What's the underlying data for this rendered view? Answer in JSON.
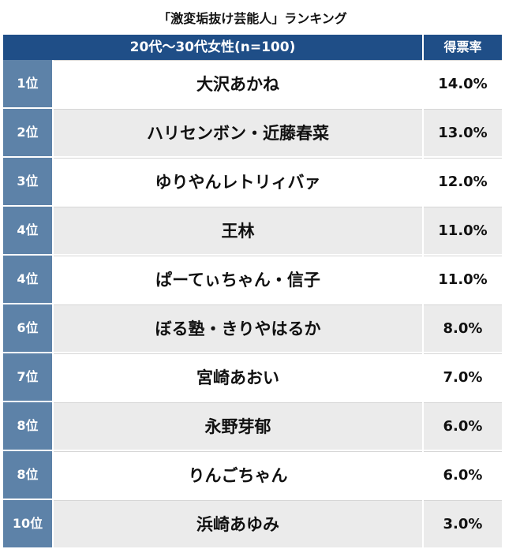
{
  "chart_data": {
    "type": "table",
    "title": "「激変垢抜け芸能人」ランキング",
    "header": {
      "group": "20代〜30代女性(n=100)",
      "rate": "得票率"
    },
    "rows": [
      {
        "rank": "1位",
        "name": "大沢あかね",
        "rate": "14.0%",
        "value": 14.0
      },
      {
        "rank": "2位",
        "name": "ハリセンボン・近藤春菜",
        "rate": "13.0%",
        "value": 13.0
      },
      {
        "rank": "3位",
        "name": "ゆりやんレトリィバァ",
        "rate": "12.0%",
        "value": 12.0
      },
      {
        "rank": "4位",
        "name": "王林",
        "rate": "11.0%",
        "value": 11.0
      },
      {
        "rank": "4位",
        "name": "ぱーてぃちゃん・信子",
        "rate": "11.0%",
        "value": 11.0
      },
      {
        "rank": "6位",
        "name": "ぼる塾・きりやはるか",
        "rate": "8.0%",
        "value": 8.0
      },
      {
        "rank": "7位",
        "name": "宮崎あおい",
        "rate": "7.0%",
        "value": 7.0
      },
      {
        "rank": "8位",
        "name": "永野芽郁",
        "rate": "6.0%",
        "value": 6.0
      },
      {
        "rank": "8位",
        "name": "りんごちゃん",
        "rate": "6.0%",
        "value": 6.0
      },
      {
        "rank": "10位",
        "name": "浜崎あゆみ",
        "rate": "3.0%",
        "value": 3.0
      }
    ]
  },
  "colors": {
    "header": "#1f4e87",
    "rank": "#5d82a8",
    "stripe": "#ebebeb"
  }
}
